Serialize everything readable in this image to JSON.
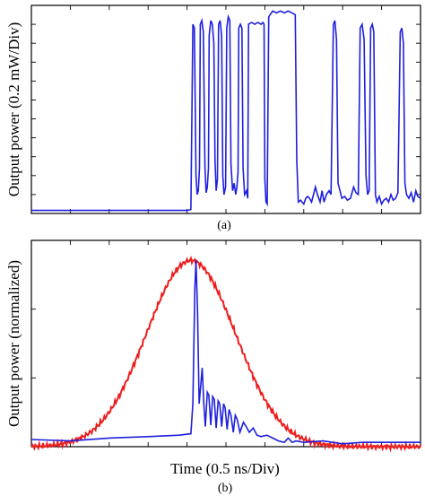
{
  "chart_data": [
    {
      "panel_label": "(a)",
      "type": "line",
      "ylabel": "Output power (0.2 mW/Div)",
      "xlabel": "",
      "grid": false,
      "xlim": [
        0,
        10
      ],
      "ylim": [
        0,
        5.5
      ],
      "series": [
        {
          "color": "#1f1fdd",
          "points": [
            [
              0.0,
              0.08
            ],
            [
              4.0,
              0.08
            ],
            [
              4.05,
              0.09
            ],
            [
              4.1,
              0.11
            ],
            [
              4.15,
              5.0
            ],
            [
              4.19,
              4.9
            ],
            [
              4.23,
              1.0
            ],
            [
              4.26,
              0.5
            ],
            [
              4.29,
              0.6
            ],
            [
              4.32,
              1.2
            ],
            [
              4.34,
              5.0
            ],
            [
              4.38,
              5.1
            ],
            [
              4.42,
              4.8
            ],
            [
              4.46,
              1.2
            ],
            [
              4.49,
              0.55
            ],
            [
              4.52,
              0.7
            ],
            [
              4.55,
              1.2
            ],
            [
              4.57,
              4.7
            ],
            [
              4.61,
              5.1
            ],
            [
              4.65,
              5.0
            ],
            [
              4.69,
              4.5
            ],
            [
              4.72,
              1.4
            ],
            [
              4.75,
              0.6
            ],
            [
              4.78,
              0.9
            ],
            [
              4.81,
              5.0
            ],
            [
              4.85,
              5.1
            ],
            [
              4.89,
              4.7
            ],
            [
              4.92,
              1.0
            ],
            [
              4.95,
              0.5
            ],
            [
              4.99,
              0.7
            ],
            [
              5.02,
              4.9
            ],
            [
              5.06,
              5.2
            ],
            [
              5.1,
              5.1
            ],
            [
              5.13,
              1.3
            ],
            [
              5.17,
              0.6
            ],
            [
              5.21,
              0.8
            ],
            [
              5.25,
              0.5
            ],
            [
              5.28,
              0.7
            ],
            [
              5.31,
              1.1
            ],
            [
              5.33,
              4.9
            ],
            [
              5.37,
              5.0
            ],
            [
              5.41,
              4.9
            ],
            [
              5.44,
              1.2
            ],
            [
              5.48,
              0.5
            ],
            [
              5.53,
              0.6
            ],
            [
              5.56,
              0.4
            ],
            [
              5.58,
              5.0
            ],
            [
              5.66,
              5.05
            ],
            [
              5.74,
              5.0
            ],
            [
              5.82,
              5.05
            ],
            [
              5.9,
              5.0
            ],
            [
              5.95,
              5.05
            ],
            [
              5.98,
              5.0
            ],
            [
              6.0,
              0.9
            ],
            [
              6.03,
              0.3
            ],
            [
              6.06,
              0.25
            ],
            [
              6.1,
              5.2
            ],
            [
              6.2,
              5.35
            ],
            [
              6.3,
              5.3
            ],
            [
              6.4,
              5.35
            ],
            [
              6.5,
              5.3
            ],
            [
              6.6,
              5.35
            ],
            [
              6.7,
              5.3
            ],
            [
              6.78,
              5.25
            ],
            [
              6.82,
              1.4
            ],
            [
              6.86,
              0.3
            ],
            [
              6.92,
              0.35
            ],
            [
              7.0,
              0.25
            ],
            [
              7.05,
              0.4
            ],
            [
              7.1,
              0.45
            ],
            [
              7.15,
              0.4
            ],
            [
              7.2,
              0.3
            ],
            [
              7.3,
              0.7
            ],
            [
              7.35,
              0.5
            ],
            [
              7.42,
              0.3
            ],
            [
              7.47,
              0.6
            ],
            [
              7.52,
              0.3
            ],
            [
              7.58,
              0.5
            ],
            [
              7.65,
              0.6
            ],
            [
              7.7,
              0.5
            ],
            [
              7.76,
              5.0
            ],
            [
              7.8,
              5.1
            ],
            [
              7.84,
              4.6
            ],
            [
              7.88,
              0.8
            ],
            [
              7.93,
              0.6
            ],
            [
              7.98,
              0.4
            ],
            [
              8.05,
              0.45
            ],
            [
              8.12,
              0.35
            ],
            [
              8.2,
              0.4
            ],
            [
              8.28,
              0.7
            ],
            [
              8.34,
              0.55
            ],
            [
              8.4,
              0.5
            ],
            [
              8.45,
              4.9
            ],
            [
              8.5,
              5.0
            ],
            [
              8.55,
              4.6
            ],
            [
              8.6,
              1.0
            ],
            [
              8.64,
              0.5
            ],
            [
              8.68,
              0.6
            ],
            [
              8.72,
              4.9
            ],
            [
              8.76,
              5.0
            ],
            [
              8.8,
              4.8
            ],
            [
              8.84,
              0.5
            ],
            [
              8.88,
              0.3
            ],
            [
              8.94,
              0.45
            ],
            [
              9.0,
              0.25
            ],
            [
              9.06,
              0.35
            ],
            [
              9.12,
              0.4
            ],
            [
              9.18,
              0.3
            ],
            [
              9.24,
              0.5
            ],
            [
              9.3,
              0.35
            ],
            [
              9.36,
              0.4
            ],
            [
              9.42,
              0.55
            ],
            [
              9.48,
              4.8
            ],
            [
              9.52,
              4.9
            ],
            [
              9.56,
              4.5
            ],
            [
              9.6,
              0.8
            ],
            [
              9.64,
              0.5
            ],
            [
              9.7,
              0.4
            ],
            [
              9.76,
              0.55
            ],
            [
              9.82,
              0.3
            ],
            [
              9.88,
              0.6
            ],
            [
              9.93,
              0.45
            ],
            [
              10.0,
              0.4
            ]
          ]
        }
      ]
    },
    {
      "panel_label": "(b)",
      "type": "line",
      "ylabel": "Output power (normalized)",
      "xlabel": "Time (0.5 ns/Div)",
      "grid": false,
      "xlim": [
        0,
        10
      ],
      "ylim": [
        0,
        1.44
      ],
      "series": [
        {
          "color": "#ee1c1c",
          "function": "gaussian",
          "peak": 1.3,
          "center": 4.1,
          "width": 1.62,
          "baseline": 0.0
        },
        {
          "color": "#1f1fdd",
          "points": [
            [
              0.0,
              0.05
            ],
            [
              1.0,
              0.04
            ],
            [
              2.0,
              0.06
            ],
            [
              3.0,
              0.07
            ],
            [
              3.8,
              0.08
            ],
            [
              4.1,
              0.09
            ],
            [
              4.15,
              0.3
            ],
            [
              4.2,
              1.1
            ],
            [
              4.23,
              1.3
            ],
            [
              4.27,
              0.95
            ],
            [
              4.31,
              0.3
            ],
            [
              4.35,
              0.42
            ],
            [
              4.39,
              0.55
            ],
            [
              4.43,
              0.3
            ],
            [
              4.47,
              0.14
            ],
            [
              4.52,
              0.38
            ],
            [
              4.56,
              0.36
            ],
            [
              4.61,
              0.15
            ],
            [
              4.66,
              0.35
            ],
            [
              4.7,
              0.33
            ],
            [
              4.75,
              0.13
            ],
            [
              4.8,
              0.32
            ],
            [
              4.84,
              0.3
            ],
            [
              4.89,
              0.14
            ],
            [
              4.94,
              0.3
            ],
            [
              4.98,
              0.27
            ],
            [
              5.03,
              0.12
            ],
            [
              5.08,
              0.26
            ],
            [
              5.13,
              0.22
            ],
            [
              5.19,
              0.1
            ],
            [
              5.24,
              0.22
            ],
            [
              5.29,
              0.19
            ],
            [
              5.36,
              0.1
            ],
            [
              5.45,
              0.17
            ],
            [
              5.52,
              0.14
            ],
            [
              5.6,
              0.1
            ],
            [
              5.7,
              0.13
            ],
            [
              5.8,
              0.08
            ],
            [
              5.9,
              0.07
            ],
            [
              6.05,
              0.08
            ],
            [
              6.2,
              0.06
            ],
            [
              6.35,
              0.04
            ],
            [
              6.5,
              0.03
            ],
            [
              6.6,
              0.06
            ],
            [
              6.7,
              0.03
            ],
            [
              6.8,
              0.04
            ],
            [
              7.0,
              0.03
            ],
            [
              7.5,
              0.04
            ],
            [
              8.0,
              0.02
            ],
            [
              8.5,
              0.03
            ],
            [
              9.0,
              0.03
            ],
            [
              10.0,
              0.03
            ]
          ]
        }
      ]
    }
  ]
}
